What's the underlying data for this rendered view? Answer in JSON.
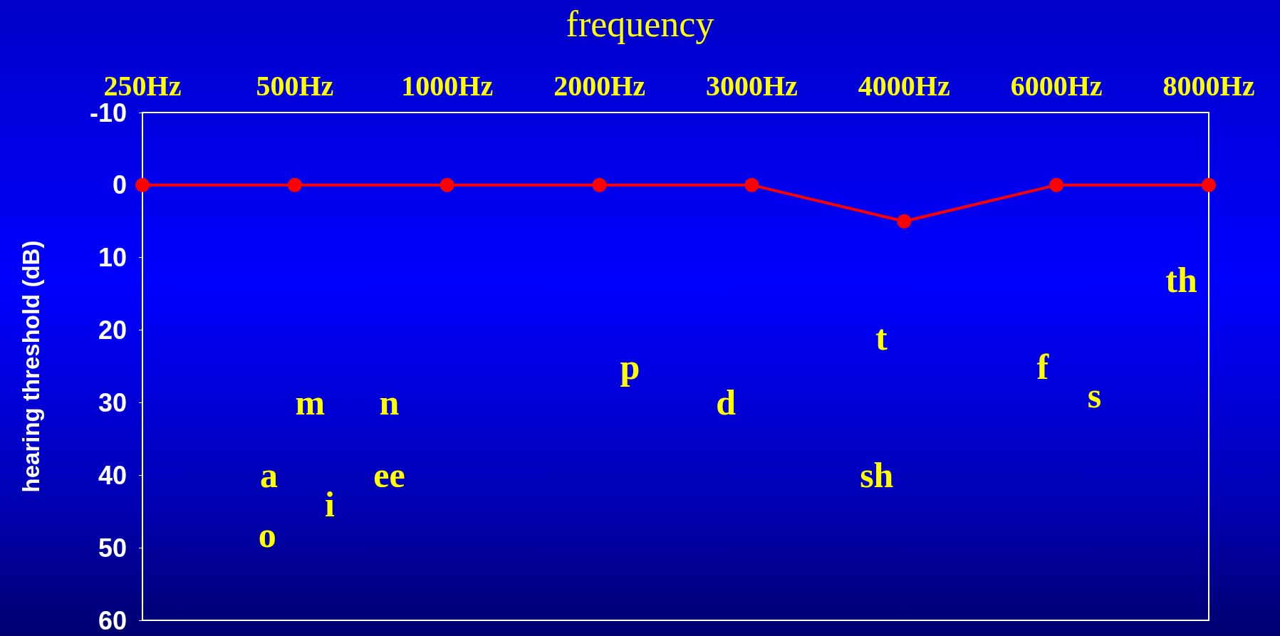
{
  "chart_data": {
    "type": "line",
    "title": "frequency",
    "ylabel": "hearing threshold (dB)",
    "categories": [
      "250Hz",
      "500Hz",
      "1000Hz",
      "2000Hz",
      "3000Hz",
      "4000Hz",
      "6000Hz",
      "8000Hz"
    ],
    "series": [
      {
        "color": "#ff0000",
        "values": [
          0,
          0,
          0,
          0,
          0,
          5,
          0,
          0
        ]
      }
    ],
    "ylim": [
      60,
      -10
    ],
    "yticks": [
      -10,
      0,
      10,
      20,
      30,
      40,
      50,
      60
    ],
    "grid": false,
    "marker": "circle",
    "line_style": "solid",
    "annotations": [
      "a",
      "o",
      "m",
      "i",
      "n",
      "ee",
      "p",
      "d",
      "t",
      "sh",
      "f",
      "s",
      "th"
    ]
  }
}
